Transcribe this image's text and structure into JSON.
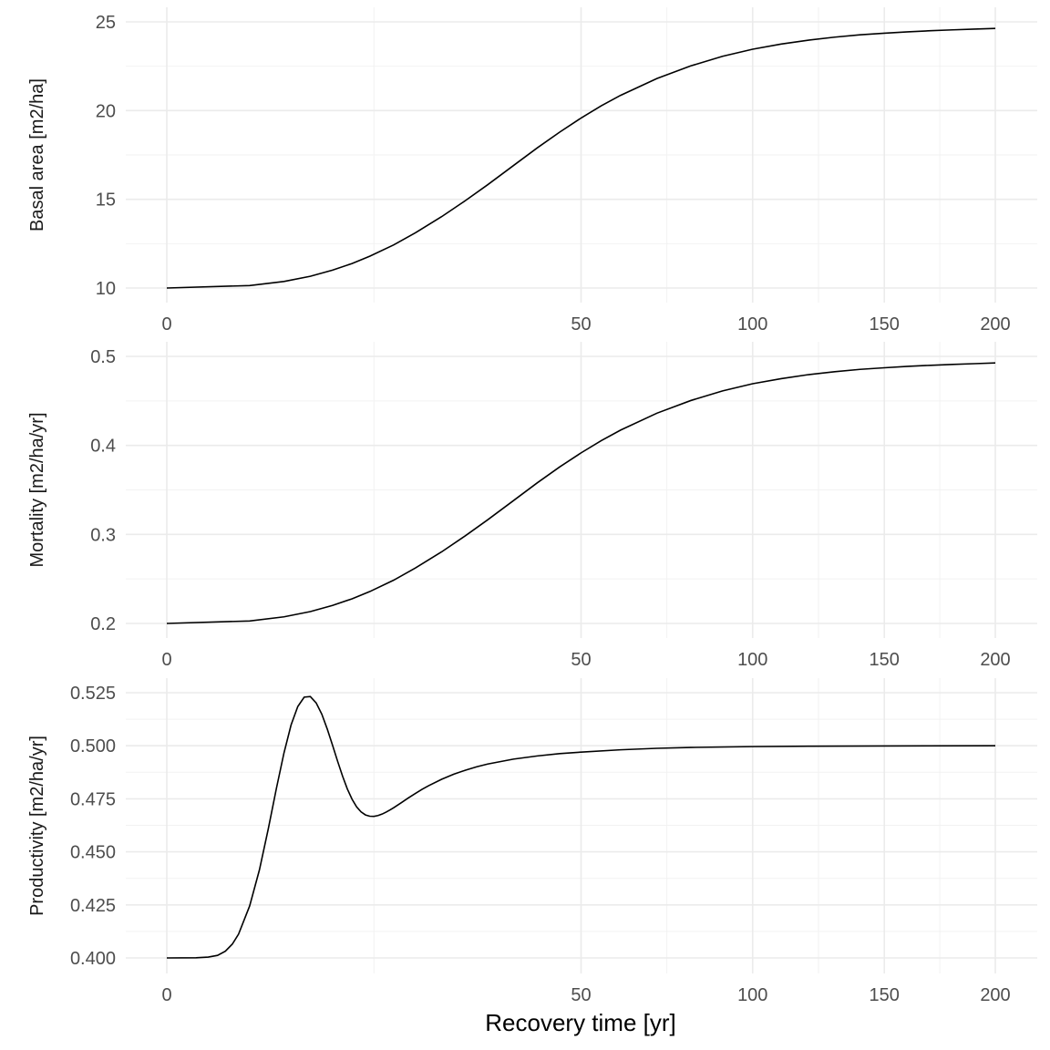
{
  "colors": {
    "background": "#ffffff",
    "grid_major": "#ebebeb",
    "grid_minor": "#f2f2f2",
    "line": "#000000",
    "tick_text": "#4d4d4d"
  },
  "chart_data": [
    {
      "type": "line",
      "ylabel": "Basal area [m2/ha]",
      "xlabel": "",
      "x_scale": "sqrt",
      "xlim": [
        0,
        200
      ],
      "ylim": [
        10,
        25
      ],
      "x_ticks": [
        0,
        50,
        100,
        150,
        200
      ],
      "x_tick_labels": [
        "0",
        "50",
        "100",
        "150",
        "200"
      ],
      "y_ticks": [
        10,
        15,
        20,
        25
      ],
      "y_tick_labels": [
        "10",
        "15",
        "20",
        "25"
      ],
      "grid": true,
      "series": [
        {
          "x": [
            0,
            2,
            4,
            6,
            8,
            10,
            12,
            15,
            18,
            22,
            26,
            30,
            35,
            40,
            45,
            50,
            55,
            60,
            70,
            80,
            90,
            100,
            110,
            120,
            130,
            140,
            150,
            160,
            170,
            180,
            190,
            200
          ],
          "y": [
            10.0,
            10.14,
            10.37,
            10.66,
            11.01,
            11.38,
            11.79,
            12.43,
            13.11,
            14.02,
            14.93,
            15.82,
            16.9,
            17.9,
            18.79,
            19.58,
            20.27,
            20.86,
            21.81,
            22.52,
            23.06,
            23.46,
            23.75,
            23.97,
            24.14,
            24.27,
            24.36,
            24.44,
            24.5,
            24.55,
            24.59,
            24.63
          ]
        }
      ]
    },
    {
      "type": "line",
      "ylabel": "Mortality [m2/ha/yr]",
      "xlabel": "",
      "x_scale": "sqrt",
      "xlim": [
        0,
        200
      ],
      "ylim": [
        0.2,
        0.5
      ],
      "x_ticks": [
        0,
        50,
        100,
        150,
        200
      ],
      "x_tick_labels": [
        "0",
        "50",
        "100",
        "150",
        "200"
      ],
      "y_ticks": [
        0.2,
        0.3,
        0.4,
        0.5
      ],
      "y_tick_labels": [
        "0.2",
        "0.3",
        "0.4",
        "0.5"
      ],
      "grid": true,
      "series": [
        {
          "x": [
            0,
            2,
            4,
            6,
            8,
            10,
            12,
            15,
            18,
            22,
            26,
            30,
            35,
            40,
            45,
            50,
            55,
            60,
            70,
            80,
            90,
            100,
            110,
            120,
            130,
            140,
            150,
            160,
            170,
            180,
            190,
            200
          ],
          "y": [
            0.2,
            0.2028,
            0.2074,
            0.2133,
            0.2202,
            0.2277,
            0.2358,
            0.2486,
            0.2623,
            0.2804,
            0.2986,
            0.3164,
            0.3379,
            0.358,
            0.3759,
            0.3916,
            0.4054,
            0.4172,
            0.4362,
            0.4504,
            0.4612,
            0.4693,
            0.475,
            0.4795,
            0.4828,
            0.4854,
            0.4872,
            0.4888,
            0.49,
            0.491,
            0.4918,
            0.4926
          ]
        }
      ]
    },
    {
      "type": "line",
      "ylabel": "Productivity [m2/ha/yr]",
      "xlabel": "Recovery time [yr]",
      "x_scale": "sqrt",
      "xlim": [
        0,
        200
      ],
      "ylim": [
        0.4,
        0.525
      ],
      "x_ticks": [
        0,
        50,
        100,
        150,
        200
      ],
      "x_tick_labels": [
        "0",
        "50",
        "100",
        "150",
        "200"
      ],
      "y_ticks": [
        0.4,
        0.425,
        0.45,
        0.475,
        0.5,
        0.525
      ],
      "y_tick_labels": [
        "0.400",
        "0.425",
        "0.450",
        "0.475",
        "0.500",
        "0.525"
      ],
      "grid": true,
      "series": [
        {
          "x": [
            0,
            0.25,
            0.5,
            0.75,
            1,
            1.25,
            1.5,
            2,
            2.5,
            3,
            3.5,
            4,
            4.5,
            5,
            5.5,
            6,
            6.5,
            7,
            7.5,
            8,
            8.5,
            9,
            9.5,
            10,
            10.5,
            11,
            11.5,
            12,
            12.5,
            13,
            13.5,
            14,
            14.5,
            15,
            16,
            17,
            18,
            19,
            20,
            22,
            24,
            26,
            28,
            30,
            35,
            40,
            45,
            50,
            60,
            70,
            80,
            100,
            120,
            150,
            200
          ],
          "y": [
            0.4,
            0.4001,
            0.4004,
            0.4012,
            0.4032,
            0.4065,
            0.4112,
            0.4245,
            0.4415,
            0.4608,
            0.4799,
            0.4966,
            0.5098,
            0.5185,
            0.5229,
            0.5232,
            0.5202,
            0.5149,
            0.5079,
            0.5003,
            0.4927,
            0.4857,
            0.4796,
            0.4748,
            0.4712,
            0.4688,
            0.4674,
            0.4668,
            0.4667,
            0.4671,
            0.4678,
            0.4687,
            0.4697,
            0.4708,
            0.4731,
            0.4754,
            0.4775,
            0.4795,
            0.4812,
            0.4842,
            0.4866,
            0.4885,
            0.4901,
            0.4914,
            0.4937,
            0.4952,
            0.4963,
            0.497,
            0.4981,
            0.4988,
            0.4992,
            0.4996,
            0.4998,
            0.4999,
            0.5
          ]
        }
      ]
    }
  ]
}
